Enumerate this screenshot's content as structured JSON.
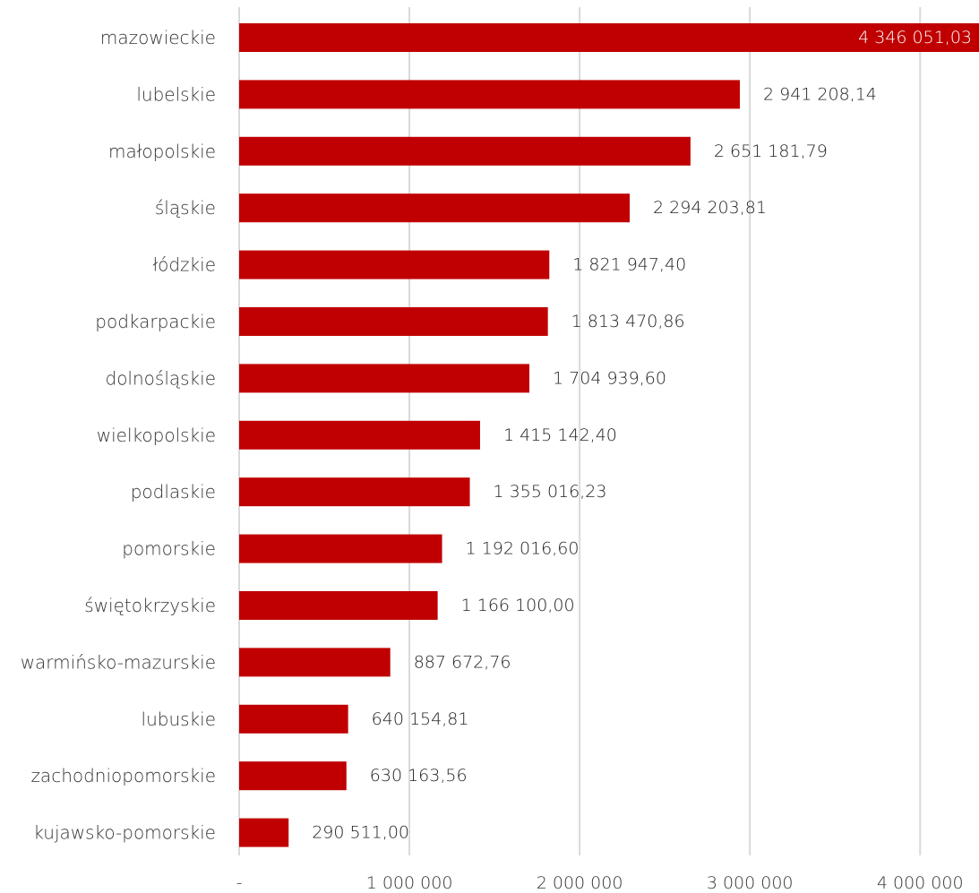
{
  "chart_data": {
    "type": "bar",
    "orientation": "horizontal",
    "title": "",
    "xlabel": "",
    "ylabel": "",
    "categories": [
      "mazowieckie",
      "lubelskie",
      "małopolskie",
      "śląskie",
      "łódzkie",
      "podkarpackie",
      "dolnośląskie",
      "wielkopolskie",
      "podlaskie",
      "pomorskie",
      "świętokrzyskie",
      "warmińsko-mazurskie",
      "lubuskie",
      "zachodniopomorskie",
      "kujawsko-pomorskie"
    ],
    "values": [
      4346051.03,
      2941208.14,
      2651181.79,
      2294203.81,
      1821947.4,
      1813470.86,
      1704939.6,
      1415142.4,
      1355016.23,
      1192016.6,
      1166100.0,
      887672.76,
      640154.81,
      630163.56,
      290511.0
    ],
    "value_labels": [
      "4 346 051,03",
      "2 941 208,14",
      "2 651 181,79",
      "2 294 203,81",
      "1 821 947,40",
      "1 813 470,86",
      "1 704 939,60",
      "1 415 142,40",
      "1 355 016,23",
      "1 192 016,60",
      "1 166 100,00",
      "887 672,76",
      "640 154,81",
      "630 163,56",
      "290 511,00"
    ],
    "xlim": [
      0,
      4346051.03
    ],
    "x_ticks": [
      0,
      1000000,
      2000000,
      3000000,
      4000000
    ],
    "x_tick_labels": [
      "-",
      "1 000 000",
      "2 000 000",
      "3 000 000",
      "4 000 000"
    ],
    "grid": "vertical",
    "legend": "none",
    "bar_color": "#c00000",
    "grid_color": "#d9d9d9"
  }
}
